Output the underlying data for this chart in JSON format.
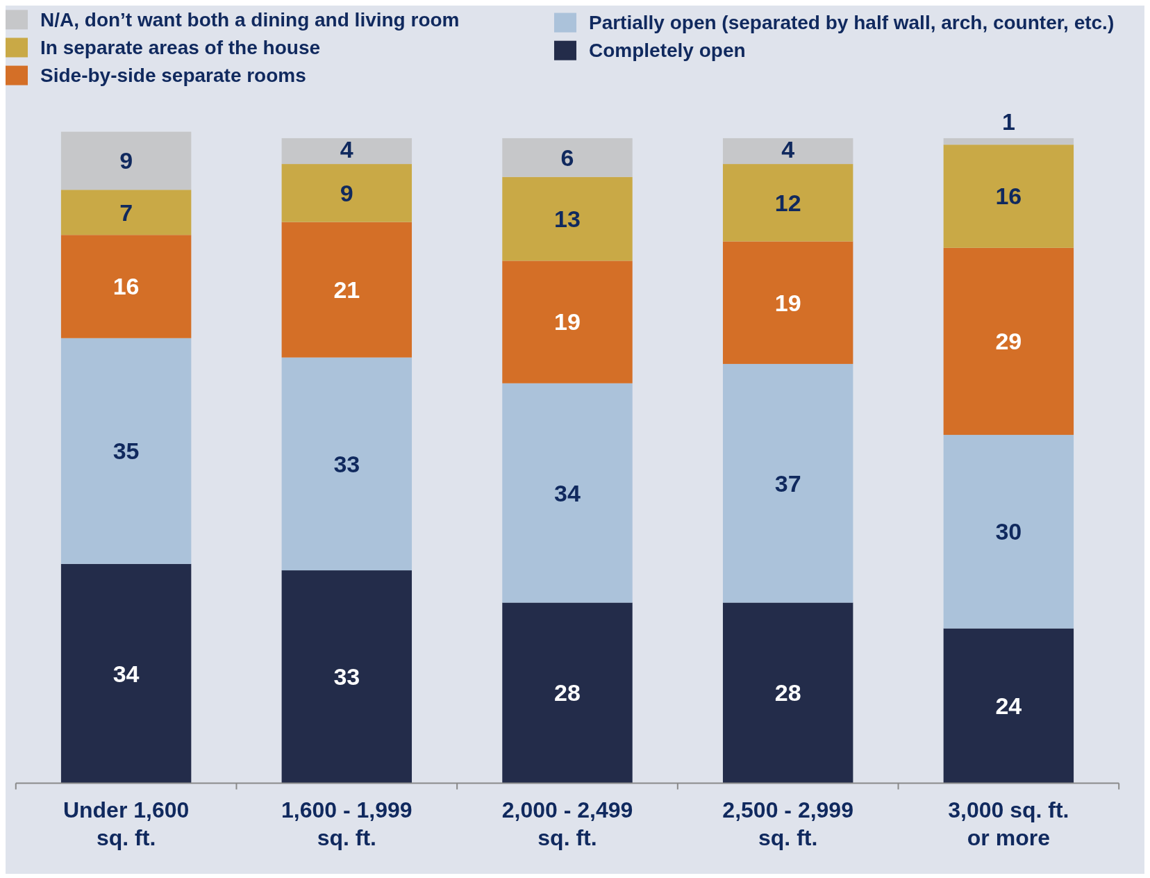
{
  "chart_data": {
    "type": "bar",
    "stacked": true,
    "data_labels": true,
    "legend": "top",
    "categories": [
      "Under 1,600\nsq. ft.",
      "1,600 - 1,999\nsq. ft.",
      "2,000 - 2,499\nsq. ft.",
      "2,500 - 2,999\nsq. ft.",
      "3,000 sq. ft.\nor more"
    ],
    "series": [
      {
        "name": "Completely open",
        "color": "#232c4a",
        "values": [
          34,
          33,
          28,
          28,
          24
        ]
      },
      {
        "name": "Partially open (separated by half wall, arch, counter, etc.)",
        "color": "#abc2da",
        "values": [
          35,
          33,
          34,
          37,
          30
        ]
      },
      {
        "name": "Side-by-side separate rooms",
        "color": "#d46f27",
        "values": [
          16,
          21,
          19,
          19,
          29
        ]
      },
      {
        "name": "In separate areas of the house",
        "color": "#c9a946",
        "values": [
          7,
          9,
          13,
          12,
          16
        ]
      },
      {
        "name": "N/A, don’t want both a dining and living room",
        "color": "#c6c7c9",
        "values": [
          9,
          4,
          6,
          4,
          1
        ]
      }
    ]
  }
}
